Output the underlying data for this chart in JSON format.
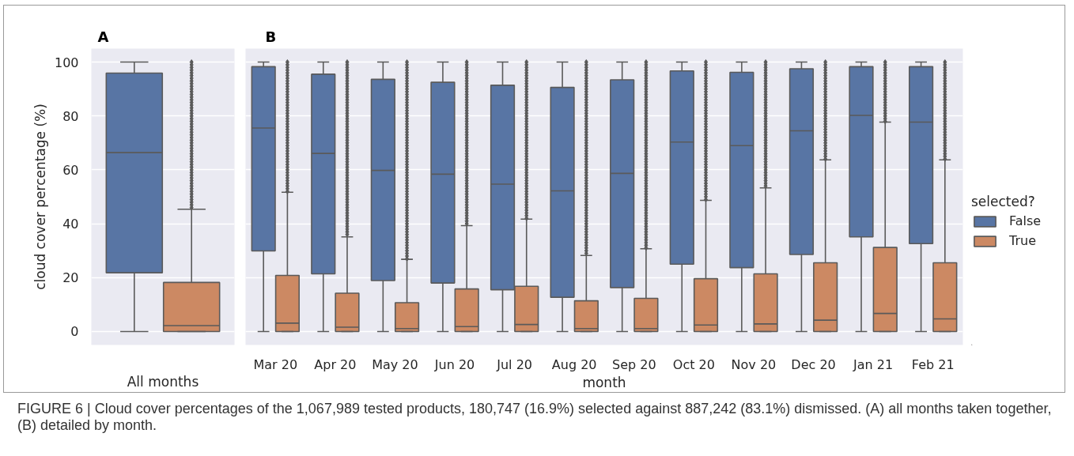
{
  "chart_data": [
    {
      "type": "box",
      "title": "A",
      "xlabel": "All months",
      "ylabel": "cloud cover percentage (%)",
      "categories": [
        null
      ],
      "ylim": [
        -5,
        105
      ],
      "yticks": [
        0,
        20,
        40,
        60,
        80,
        100
      ],
      "tick_labels": "y",
      "grid": "y",
      "marker": "diamond",
      "legend": false,
      "annotations": [
        "FIGURE 6 | Cloud cover percentages of the 1,067,989 tested products, 180,747 (16.9%) selected against 887,242 (83.1%) dismissed. (A) all months taken together, (B) detailed by month."
      ],
      "series": [
        {
          "color": "#5875a4",
          "boxes": [
            {
              "low": 0,
              "q1": 21.8,
              "median": 66.4,
              "q3": 95.9,
              "high": 100
            }
          ]
        },
        {
          "color": "#cc8963",
          "boxes": [
            {
              "low": 0,
              "q1": 0,
              "median": 2.2,
              "q3": 18.2,
              "high": 45.4,
              "outliers": [
                46,
                47,
                48,
                49,
                50,
                51,
                52,
                53,
                54,
                55,
                56,
                57,
                58,
                59,
                60,
                61,
                62,
                63,
                64,
                65,
                66,
                67,
                68,
                69,
                70,
                71,
                72,
                73,
                74,
                75,
                76,
                77,
                78,
                79,
                80,
                81,
                82,
                83,
                84,
                85,
                86,
                87,
                88,
                89,
                90,
                91,
                92,
                93,
                94,
                95,
                96,
                97,
                98,
                99,
                100
              ]
            }
          ]
        }
      ]
    },
    {
      "type": "box",
      "title": "B",
      "xlabel": "month",
      "categories": [
        "Mar 20",
        "Apr 20",
        "May 20",
        "Jun 20",
        "Jul 20",
        "Aug 20",
        "Sep 20",
        "Oct 20",
        "Nov 20",
        "Dec 20",
        "Jan 21",
        "Feb 21"
      ],
      "ylim": [
        -5,
        105
      ],
      "yticks": [
        0,
        20,
        40,
        60,
        80,
        100
      ],
      "tick_labels": "x",
      "grid": "y",
      "marker": "diamond",
      "legend": "right",
      "legend_title": "selected?",
      "series": [
        {
          "name": "False",
          "color": "#5875a4",
          "boxes": [
            {
              "low": 0,
              "q1": 29.9,
              "median": 75.5,
              "q3": 98.3,
              "high": 100
            },
            {
              "low": 0,
              "q1": 21.4,
              "median": 66.1,
              "q3": 95.5,
              "high": 100
            },
            {
              "low": 0,
              "q1": 18.9,
              "median": 59.8,
              "q3": 93.6,
              "high": 100
            },
            {
              "low": 0,
              "q1": 18.0,
              "median": 58.4,
              "q3": 92.5,
              "high": 100
            },
            {
              "low": 0,
              "q1": 15.5,
              "median": 54.7,
              "q3": 91.4,
              "high": 100
            },
            {
              "low": 0,
              "q1": 12.7,
              "median": 52.2,
              "q3": 90.6,
              "high": 100
            },
            {
              "low": 0,
              "q1": 16.3,
              "median": 58.7,
              "q3": 93.4,
              "high": 100
            },
            {
              "low": 0,
              "q1": 25.0,
              "median": 70.3,
              "q3": 96.7,
              "high": 100
            },
            {
              "low": 0,
              "q1": 23.7,
              "median": 69.0,
              "q3": 96.2,
              "high": 100
            },
            {
              "low": 0,
              "q1": 28.6,
              "median": 74.5,
              "q3": 97.5,
              "high": 100
            },
            {
              "low": 0,
              "q1": 35.1,
              "median": 80.2,
              "q3": 98.3,
              "high": 100
            },
            {
              "low": 0,
              "q1": 32.6,
              "median": 77.7,
              "q3": 98.3,
              "high": 100
            }
          ]
        },
        {
          "name": "True",
          "color": "#cc8963",
          "boxes": [
            {
              "low": 0,
              "q1": 0,
              "median": 3.1,
              "q3": 20.8,
              "high": 51.7,
              "outliers": [
                52,
                53,
                54,
                55,
                56,
                57,
                58,
                59,
                60,
                61,
                62,
                63,
                64,
                65,
                66,
                67,
                68,
                69,
                70,
                71,
                72,
                73,
                74,
                75,
                76,
                77,
                78,
                79,
                80,
                81,
                82,
                83,
                84,
                85,
                86,
                87,
                88,
                89,
                90,
                91,
                92,
                93,
                94,
                95,
                96,
                97,
                98,
                99,
                100
              ]
            },
            {
              "low": 0,
              "q1": 0,
              "median": 1.6,
              "q3": 14.2,
              "high": 35.1,
              "outliers": [
                36,
                37,
                38,
                39,
                40,
                41,
                42,
                43,
                44,
                45,
                46,
                47,
                48,
                49,
                50,
                51,
                52,
                53,
                54,
                55,
                56,
                57,
                58,
                59,
                60,
                61,
                62,
                63,
                64,
                65,
                66,
                67,
                68,
                69,
                70,
                71,
                72,
                73,
                74,
                75,
                76,
                77,
                78,
                79,
                80,
                81,
                82,
                83,
                84,
                85,
                86,
                87,
                88,
                89,
                90,
                91,
                92,
                93,
                94,
                95,
                96,
                97,
                98,
                99,
                100
              ]
            },
            {
              "low": 0,
              "q1": 0,
              "median": 1.1,
              "q3": 10.7,
              "high": 26.8,
              "outliers": [
                27,
                28,
                29,
                30,
                31,
                32,
                33,
                34,
                35,
                36,
                37,
                38,
                39,
                40,
                41,
                42,
                43,
                44,
                45,
                46,
                47,
                48,
                49,
                50,
                51,
                52,
                53,
                54,
                55,
                56,
                57,
                58,
                59,
                60,
                61,
                62,
                63,
                64,
                65,
                66,
                67,
                68,
                69,
                70,
                71,
                72,
                73,
                74,
                75,
                76,
                77,
                78,
                79,
                80,
                81,
                82,
                83,
                84,
                85,
                86,
                87,
                88,
                89,
                90,
                91,
                92,
                93,
                94,
                95,
                96,
                97,
                98,
                99,
                100
              ]
            },
            {
              "low": 0,
              "q1": 0,
              "median": 1.8,
              "q3": 15.8,
              "high": 39.3,
              "outliers": [
                40,
                41,
                42,
                43,
                44,
                45,
                46,
                47,
                48,
                49,
                50,
                51,
                52,
                53,
                54,
                55,
                56,
                57,
                58,
                59,
                60,
                61,
                62,
                63,
                64,
                65,
                66,
                67,
                68,
                69,
                70,
                71,
                72,
                73,
                74,
                75,
                76,
                77,
                78,
                79,
                80,
                81,
                82,
                83,
                84,
                85,
                86,
                87,
                88,
                89,
                90,
                91,
                92,
                93,
                94,
                95,
                96,
                97,
                98,
                99,
                100
              ]
            },
            {
              "low": 0,
              "q1": 0,
              "median": 2.6,
              "q3": 16.8,
              "high": 41.7,
              "outliers": [
                42,
                43,
                44,
                45,
                46,
                47,
                48,
                49,
                50,
                51,
                52,
                53,
                54,
                55,
                56,
                57,
                58,
                59,
                60,
                61,
                62,
                63,
                64,
                65,
                66,
                67,
                68,
                69,
                70,
                71,
                72,
                73,
                74,
                75,
                76,
                77,
                78,
                79,
                80,
                81,
                82,
                83,
                84,
                85,
                86,
                87,
                88,
                89,
                90,
                91,
                92,
                93,
                94,
                95,
                96,
                97,
                98,
                99,
                100
              ]
            },
            {
              "low": 0,
              "q1": 0,
              "median": 1.1,
              "q3": 11.4,
              "high": 28.2,
              "outliers": [
                29,
                30,
                31,
                32,
                33,
                34,
                35,
                36,
                37,
                38,
                39,
                40,
                41,
                42,
                43,
                44,
                45,
                46,
                47,
                48,
                49,
                50,
                51,
                52,
                53,
                54,
                55,
                56,
                57,
                58,
                59,
                60,
                61,
                62,
                63,
                64,
                65,
                66,
                67,
                68,
                69,
                70,
                71,
                72,
                73,
                74,
                75,
                76,
                77,
                78,
                79,
                80,
                81,
                82,
                83,
                84,
                85,
                86,
                87,
                88,
                89,
                90,
                91,
                92,
                93,
                94,
                95,
                96,
                97,
                98,
                99,
                100
              ]
            },
            {
              "low": 0,
              "q1": 0,
              "median": 1.1,
              "q3": 12.3,
              "high": 30.7,
              "outliers": [
                31,
                32,
                33,
                34,
                35,
                36,
                37,
                38,
                39,
                40,
                41,
                42,
                43,
                44,
                45,
                46,
                47,
                48,
                49,
                50,
                51,
                52,
                53,
                54,
                55,
                56,
                57,
                58,
                59,
                60,
                61,
                62,
                63,
                64,
                65,
                66,
                67,
                68,
                69,
                70,
                71,
                72,
                73,
                74,
                75,
                76,
                77,
                78,
                79,
                80,
                81,
                82,
                83,
                84,
                85,
                86,
                87,
                88,
                89,
                90,
                91,
                92,
                93,
                94,
                95,
                96,
                97,
                98,
                99,
                100
              ]
            },
            {
              "low": 0,
              "q1": 0,
              "median": 2.4,
              "q3": 19.6,
              "high": 48.7,
              "outliers": [
                49,
                50,
                51,
                52,
                53,
                54,
                55,
                56,
                57,
                58,
                59,
                60,
                61,
                62,
                63,
                64,
                65,
                66,
                67,
                68,
                69,
                70,
                71,
                72,
                73,
                74,
                75,
                76,
                77,
                78,
                79,
                80,
                81,
                82,
                83,
                84,
                85,
                86,
                87,
                88,
                89,
                90,
                91,
                92,
                93,
                94,
                95,
                96,
                97,
                98,
                99,
                100
              ]
            },
            {
              "low": 0,
              "q1": 0,
              "median": 2.8,
              "q3": 21.4,
              "high": 53.3,
              "outliers": [
                54,
                55,
                56,
                57,
                58,
                59,
                60,
                61,
                62,
                63,
                64,
                65,
                66,
                67,
                68,
                69,
                70,
                71,
                72,
                73,
                74,
                75,
                76,
                77,
                78,
                79,
                80,
                81,
                82,
                83,
                84,
                85,
                86,
                87,
                88,
                89,
                90,
                91,
                92,
                93,
                94,
                95,
                96,
                97,
                98,
                99,
                100
              ]
            },
            {
              "low": 0,
              "q1": 0,
              "median": 4.2,
              "q3": 25.5,
              "high": 63.7,
              "outliers": [
                64,
                65,
                66,
                67,
                68,
                69,
                70,
                71,
                72,
                73,
                74,
                75,
                76,
                77,
                78,
                79,
                80,
                81,
                82,
                83,
                84,
                85,
                86,
                87,
                88,
                89,
                90,
                91,
                92,
                93,
                94,
                95,
                96,
                97,
                98,
                99,
                100
              ]
            },
            {
              "low": 0,
              "q1": 0,
              "median": 6.7,
              "q3": 31.2,
              "high": 77.7,
              "outliers": [
                78,
                79,
                80,
                81,
                82,
                83,
                84,
                85,
                86,
                87,
                88,
                89,
                90,
                91,
                92,
                93,
                94,
                95,
                96,
                97,
                98,
                99,
                100
              ]
            },
            {
              "low": 0,
              "q1": 0,
              "median": 4.7,
              "q3": 25.5,
              "high": 63.7,
              "outliers": [
                64,
                65,
                66,
                67,
                68,
                69,
                70,
                71,
                72,
                73,
                74,
                75,
                76,
                77,
                78,
                79,
                80,
                81,
                82,
                83,
                84,
                85,
                86,
                87,
                88,
                89,
                90,
                91,
                92,
                93,
                94,
                95,
                96,
                97,
                98,
                99,
                100
              ]
            }
          ]
        }
      ]
    }
  ]
}
